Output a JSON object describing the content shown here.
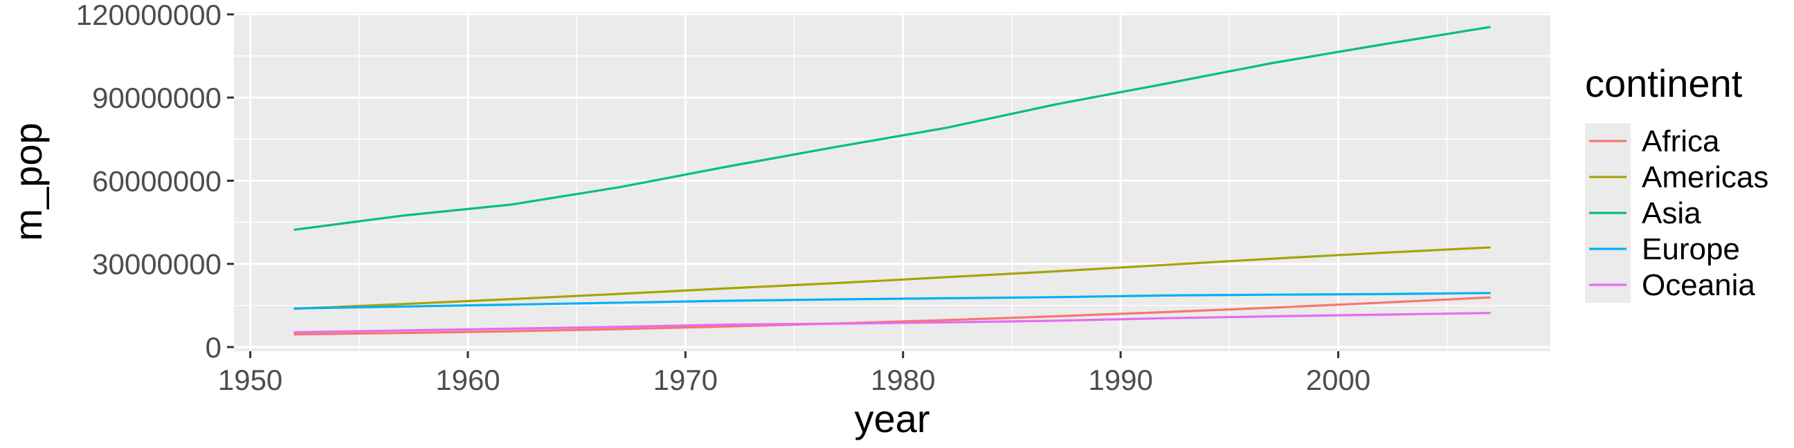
{
  "chart_data": {
    "type": "line",
    "xlabel": "year",
    "ylabel": "m_pop",
    "xlim": [
      1949.25,
      2009.75
    ],
    "ylim": [
      -1500000,
      120700000
    ],
    "x_ticks": [
      1950,
      1960,
      1970,
      1980,
      1990,
      2000
    ],
    "y_ticks": [
      0,
      30000000,
      60000000,
      90000000,
      120000000
    ],
    "x_tick_labels": [
      "1950",
      "1960",
      "1970",
      "1980",
      "1990",
      "2000"
    ],
    "y_tick_labels": [
      "0",
      "30000000",
      "60000000",
      "90000000",
      "120000000"
    ],
    "grid": true,
    "legend": {
      "title": "continent",
      "position": "right"
    },
    "x": [
      1952,
      1957,
      1962,
      1967,
      1972,
      1977,
      1982,
      1987,
      1992,
      1997,
      2002,
      2007
    ],
    "series": [
      {
        "name": "Africa",
        "color": "#F8766D",
        "values": [
          4570000,
          5090000,
          5710000,
          6480000,
          7440000,
          8520000,
          9710000,
          11100000,
          12600000,
          14200000,
          16000000,
          17900000
        ]
      },
      {
        "name": "Americas",
        "color": "#A3A500",
        "values": [
          13800000,
          15500000,
          17300000,
          19200000,
          21200000,
          23100000,
          25200000,
          27300000,
          29600000,
          31900000,
          33990000,
          35950000
        ]
      },
      {
        "name": "Asia",
        "color": "#00BF7D",
        "values": [
          42300000,
          47400000,
          51400000,
          57700000,
          65200000,
          72300000,
          79100000,
          87500000,
          94900000,
          102500000,
          109100000,
          115500000
        ]
      },
      {
        "name": "Europe",
        "color": "#00B0F6",
        "values": [
          13900000,
          14600000,
          15300000,
          16000000,
          16700000,
          17200000,
          17600000,
          18000000,
          18600000,
          18900000,
          19100000,
          19500000
        ]
      },
      {
        "name": "Oceania",
        "color": "#E76BF3",
        "values": [
          5340000,
          5970000,
          6640000,
          7300000,
          8100000,
          8460000,
          8900000,
          9500000,
          10400000,
          11100000,
          11700000,
          12300000
        ]
      }
    ]
  }
}
